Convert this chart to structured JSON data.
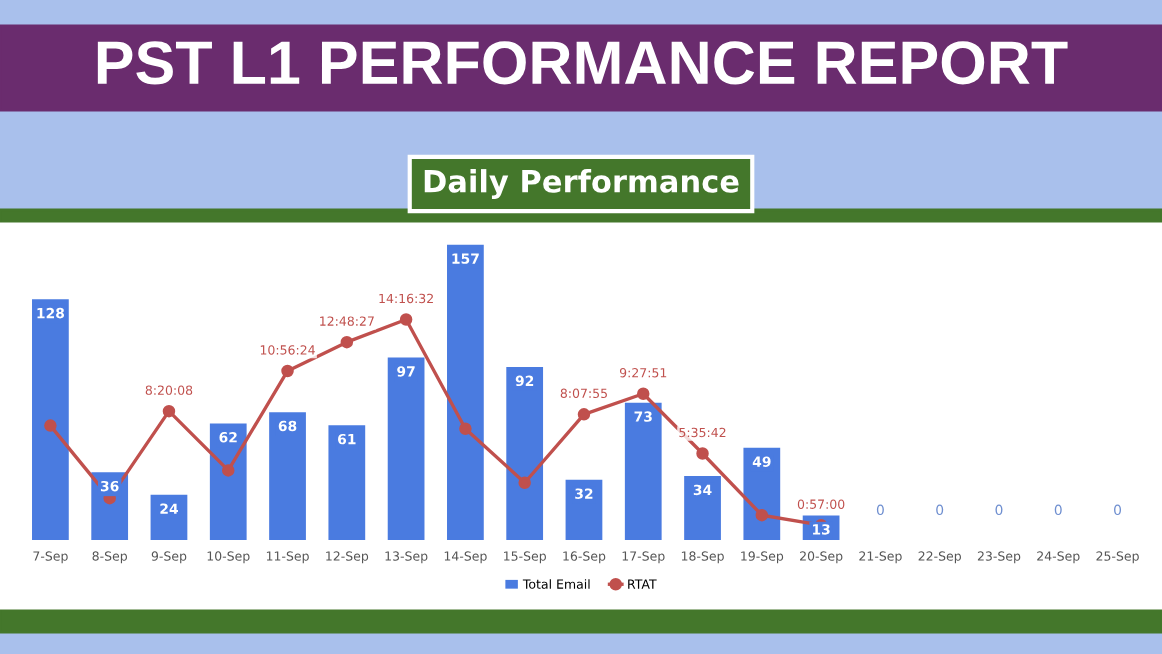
{
  "chart_data": {
    "type": "bar",
    "title": "PST L1 PERFORMANCE REPORT",
    "subtitle": "Daily Performance",
    "categories": [
      "7-Sep",
      "8-Sep",
      "9-Sep",
      "10-Sep",
      "11-Sep",
      "12-Sep",
      "13-Sep",
      "14-Sep",
      "15-Sep",
      "16-Sep",
      "17-Sep",
      "18-Sep",
      "19-Sep",
      "20-Sep",
      "21-Sep",
      "22-Sep",
      "23-Sep",
      "24-Sep",
      "25-Sep"
    ],
    "series": [
      {
        "name": "Total Email",
        "color": "#4a7be0",
        "values": [
          128,
          36,
          24,
          62,
          68,
          61,
          97,
          157,
          92,
          32,
          73,
          34,
          49,
          13,
          0,
          0,
          0,
          0,
          0
        ],
        "data_labels": true
      },
      {
        "name": "RTAT",
        "type": "line",
        "axis": "y2",
        "color": "#c0504d",
        "marker": "circle",
        "values": [
          7.4,
          2.7,
          8.33556,
          4.5,
          10.94,
          12.8075,
          14.27556,
          7.2,
          3.7,
          8.13194,
          9.46417,
          5.595,
          1.6,
          0.95,
          null,
          null,
          null,
          null,
          null
        ],
        "value_labels": [
          null,
          null,
          "8:20:08",
          null,
          "10:56:24",
          "12:48:27",
          "14:16:32",
          null,
          null,
          "8:07:55",
          "9:27:51",
          "5:35:42",
          null,
          "0:57:00",
          null,
          null,
          null,
          null,
          null
        ]
      }
    ],
    "tick_labels": "x",
    "grid": false,
    "legend": "bottom"
  }
}
